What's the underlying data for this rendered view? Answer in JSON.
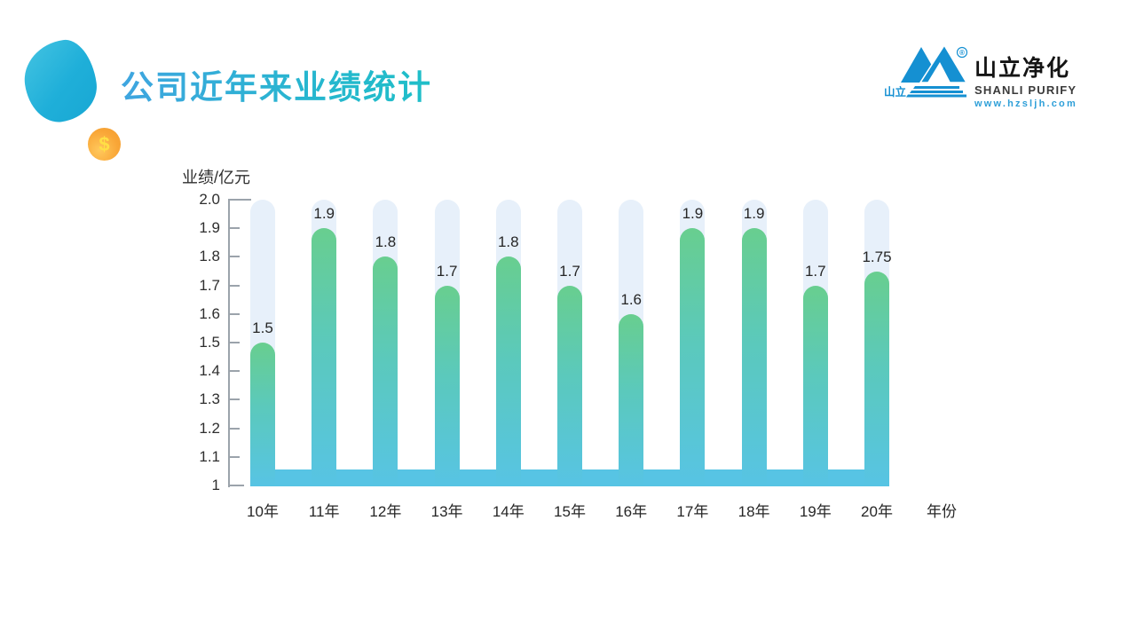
{
  "header": {
    "title": "公司近年来业绩统计",
    "coin_symbol": "$"
  },
  "logo": {
    "mark_label": "山立",
    "registered_mark": "®",
    "name_cn": "山立净化",
    "name_en": "SHANLI PURIFY",
    "url": "www.hzsljh.com",
    "brand_blue": "#1590D2"
  },
  "chart_data": {
    "type": "bar",
    "title": "公司近年来业绩统计",
    "ylabel": "业绩/亿元",
    "xlabel": "年份",
    "categories": [
      "10年",
      "11年",
      "12年",
      "13年",
      "14年",
      "15年",
      "16年",
      "17年",
      "18年",
      "19年",
      "20年"
    ],
    "values": [
      1.5,
      1.9,
      1.8,
      1.7,
      1.8,
      1.7,
      1.6,
      1.9,
      1.9,
      1.7,
      1.75
    ],
    "value_labels": [
      "1.5",
      "1.9",
      "1.8",
      "1.7",
      "1.8",
      "1.7",
      "1.6",
      "1.9",
      "1.9",
      "1.7",
      "1.75"
    ],
    "ylim": [
      1,
      2
    ],
    "ytick_labels": [
      "2.0",
      "1.9",
      "1.8",
      "1.7",
      "1.6",
      "1.5",
      "1.4",
      "1.3",
      "1.2",
      "1.1",
      "1"
    ],
    "grid": false,
    "legend": false,
    "colors": {
      "bar_top": "#68CE8F",
      "bar_bottom": "#57C4E4",
      "track": "#E7F0FA",
      "band": "#57C4E4",
      "axis": "#9BA3AB"
    }
  }
}
